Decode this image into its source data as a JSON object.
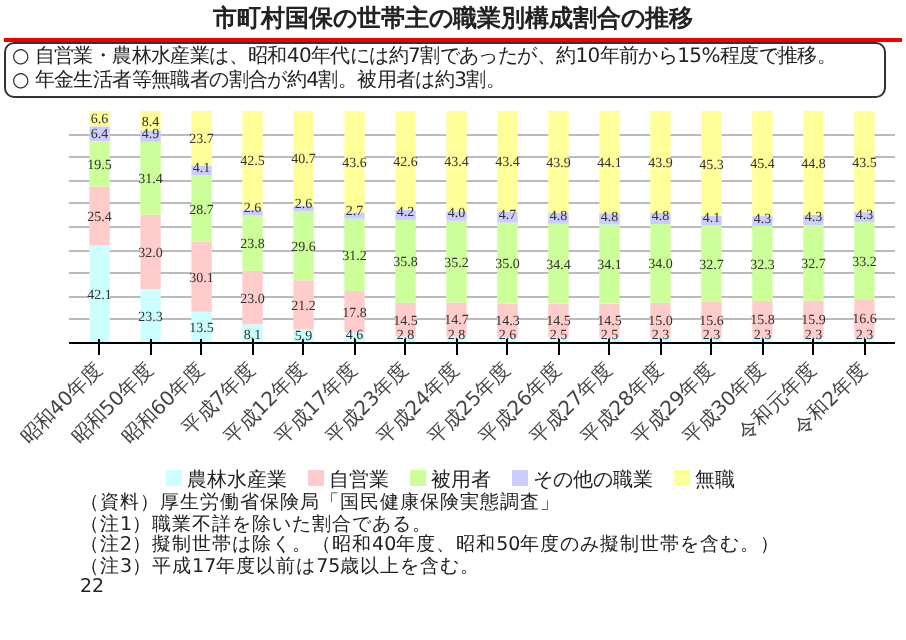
{
  "chart_data": {
    "type": "bar",
    "stacked": true,
    "title": "市町村国保の世帯主の職業別構成割合の推移",
    "subtitle": "○ 自営業・農林水産業は、昭和40年代には約7割であったが、約10年前から15%程度で推移。\n○ 年金生活者等無職者の割合が約4割。被用者は約3割。",
    "categories": [
      "昭和40年度",
      "昭和50年度",
      "昭和60年度",
      "平成7年度",
      "平成12年度",
      "平成17年度",
      "平成23年度",
      "平成24年度",
      "平成25年度",
      "平成26年度",
      "平成27年度",
      "平成28年度",
      "平成29年度",
      "平成30年度",
      "令和元年度",
      "令和2年度"
    ],
    "series": [
      {
        "name": "農林水産業",
        "color": "#ccffff",
        "values": [
          42.1,
          23.3,
          13.5,
          8.1,
          5.9,
          4.6,
          2.8,
          2.8,
          2.6,
          2.5,
          2.5,
          2.3,
          2.3,
          2.3,
          2.3,
          2.3
        ],
        "value_labels": [
          "42.1",
          "23.3",
          "13.5",
          "8.1",
          "5.9",
          "4.6",
          "2.8",
          "2.8",
          "2.6",
          "2.5",
          "2.5",
          "2.3",
          "2.3",
          "2.3",
          "2.3",
          "2.3"
        ]
      },
      {
        "name": "自営業",
        "color": "#ffcccc",
        "values": [
          25.4,
          32.0,
          30.1,
          23.0,
          21.2,
          17.8,
          14.5,
          14.7,
          14.3,
          14.5,
          14.5,
          15.0,
          15.6,
          15.8,
          15.9,
          16.6
        ],
        "value_labels": [
          "25.4",
          "32.0",
          "30.1",
          "23.0",
          "21.2",
          "17.8",
          "14.5",
          "14.7",
          "14.3",
          "14.5",
          "14.5",
          "15.0",
          "15.6",
          "15.8",
          "15.9",
          "16.6"
        ]
      },
      {
        "name": "被用者",
        "color": "#ccff99",
        "values": [
          19.5,
          31.4,
          28.7,
          23.8,
          29.6,
          31.2,
          35.8,
          35.2,
          35.0,
          34.4,
          34.1,
          34.0,
          32.7,
          32.3,
          32.7,
          33.2
        ],
        "value_labels": [
          "19.5",
          "31.4",
          "28.7",
          "23.8",
          "29.6",
          "31.2",
          "35.8",
          "35.2",
          "35.0",
          "34.4",
          "34.1",
          "34.0",
          "32.7",
          "32.3",
          "32.7",
          "33.2"
        ]
      },
      {
        "name": "その他の職業",
        "color": "#ccccff",
        "values": [
          6.4,
          4.9,
          4.1,
          2.6,
          2.6,
          2.7,
          4.2,
          4.0,
          4.7,
          4.8,
          4.8,
          4.8,
          4.1,
          4.3,
          4.3,
          4.3
        ],
        "value_labels": [
          "6.4",
          "4.9",
          "4.1",
          "2.6",
          "2.6",
          "2.7",
          "4.2",
          "4.0",
          "4.7",
          "4.8",
          "4.8",
          "4.8",
          "4.1",
          "4.3",
          "4.3",
          "4.3"
        ]
      },
      {
        "name": "無職",
        "color": "#ffff99",
        "values": [
          6.6,
          8.4,
          23.7,
          42.5,
          40.7,
          43.6,
          42.6,
          43.4,
          43.4,
          43.9,
          44.1,
          43.9,
          45.3,
          45.4,
          44.8,
          43.5
        ],
        "value_labels": [
          "6.6",
          "8.4",
          "23.7",
          "42.5",
          "40.7",
          "43.6",
          "42.6",
          "43.4",
          "43.4",
          "43.9",
          "44.1",
          "43.9",
          "45.3",
          "45.4",
          "44.8",
          "43.5"
        ]
      }
    ],
    "ylim": [
      0,
      100
    ],
    "yticks": [
      {
        "value": 0,
        "label": null
      },
      {
        "value": 10,
        "label": null
      },
      {
        "value": 20,
        "label": null
      },
      {
        "value": 30,
        "label": null
      },
      {
        "value": 40,
        "label": null
      },
      {
        "value": 50,
        "label": null
      },
      {
        "value": 60,
        "label": null
      },
      {
        "value": 70,
        "label": null
      },
      {
        "value": 80,
        "label": null
      },
      {
        "value": 90,
        "label": null
      }
    ],
    "tick_labels": "x",
    "grid": "y",
    "legend": "bottom",
    "annotations": [
      "（資料）厚生労働省保険局「国民健康保険実態調査」",
      "（注1）職業不詳を除いた割合である。",
      "（注2）擬制世帯は除く。（昭和40年度、昭和50年度のみ擬制世帯を含む。）",
      "（注3）平成17年度以前は75歳以上を含む。",
      "22"
    ]
  }
}
